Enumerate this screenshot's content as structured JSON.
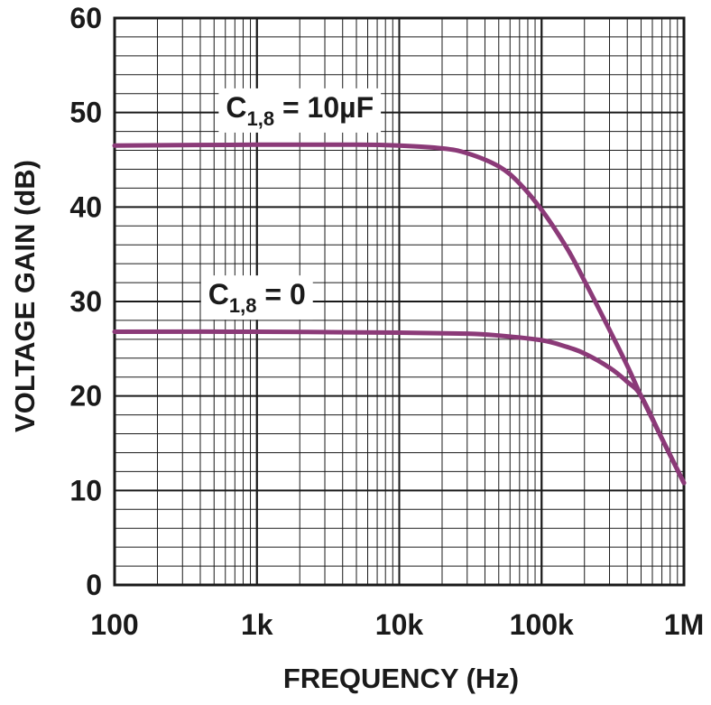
{
  "chart_data": {
    "type": "line",
    "xlabel": "FREQUENCY (Hz)",
    "ylabel": "VOLTAGE GAIN (dB)",
    "x_scale": "log",
    "xlim": [
      100,
      1000000
    ],
    "ylim": [
      0,
      60
    ],
    "grid": true,
    "x_ticks": [
      {
        "value": 100,
        "label": "100"
      },
      {
        "value": 1000,
        "label": "1k"
      },
      {
        "value": 10000,
        "label": "10k"
      },
      {
        "value": 100000,
        "label": "100k"
      },
      {
        "value": 1000000,
        "label": "1M"
      }
    ],
    "y_ticks": [
      {
        "value": 0,
        "label": "0"
      },
      {
        "value": 10,
        "label": "10"
      },
      {
        "value": 20,
        "label": "20"
      },
      {
        "value": 30,
        "label": "30"
      },
      {
        "value": 40,
        "label": "40"
      },
      {
        "value": 50,
        "label": "50"
      },
      {
        "value": 60,
        "label": "60"
      }
    ],
    "series": [
      {
        "name": "C1,8 = 10µF",
        "label_main": "C",
        "label_sub": "1,8",
        "label_rest": " = 10µF",
        "label_at": {
          "x": 2000,
          "y": 49.5
        },
        "color": "#8b3a78",
        "points": [
          [
            100,
            46.5
          ],
          [
            1000,
            46.6
          ],
          [
            5000,
            46.6
          ],
          [
            10000,
            46.5
          ],
          [
            20000,
            46.2
          ],
          [
            30000,
            45.7
          ],
          [
            50000,
            44.3
          ],
          [
            70000,
            42.5
          ],
          [
            100000,
            39.7
          ],
          [
            150000,
            35.7
          ],
          [
            200000,
            32.2
          ],
          [
            300000,
            27.0
          ],
          [
            400000,
            23.2
          ],
          [
            500000,
            20.0
          ],
          [
            700000,
            15.5
          ],
          [
            1000000,
            10.8
          ]
        ]
      },
      {
        "name": "C1,8 = 0",
        "label_main": "C",
        "label_sub": "1,8",
        "label_rest": " = 0",
        "label_at": {
          "x": 1000,
          "y": 29.7
        },
        "color": "#8b3a78",
        "points": [
          [
            100,
            26.8
          ],
          [
            1000,
            26.8
          ],
          [
            10000,
            26.7
          ],
          [
            30000,
            26.6
          ],
          [
            50000,
            26.4
          ],
          [
            100000,
            25.9
          ],
          [
            150000,
            25.2
          ],
          [
            200000,
            24.5
          ],
          [
            300000,
            23.0
          ],
          [
            400000,
            21.5
          ],
          [
            500000,
            20.0
          ],
          [
            700000,
            15.5
          ],
          [
            1000000,
            10.8
          ]
        ]
      }
    ]
  }
}
